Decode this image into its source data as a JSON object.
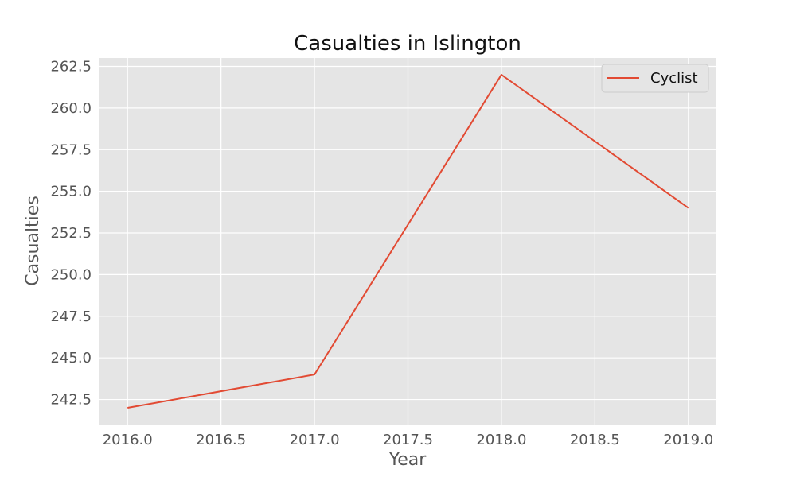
{
  "chart_data": {
    "type": "line",
    "title": "Casualties in Islington",
    "xlabel": "Year",
    "ylabel": "Casualties",
    "xlim": [
      2015.85,
      2019.15
    ],
    "ylim": [
      241.0,
      263.0
    ],
    "xticks": [
      2016.0,
      2016.5,
      2017.0,
      2017.5,
      2018.0,
      2018.5,
      2019.0
    ],
    "xtick_labels": [
      "2016.0",
      "2016.5",
      "2017.0",
      "2017.5",
      "2018.0",
      "2018.5",
      "2019.0"
    ],
    "yticks": [
      242.5,
      245.0,
      247.5,
      250.0,
      252.5,
      255.0,
      257.5,
      260.0,
      262.5
    ],
    "ytick_labels": [
      "242.5",
      "245.0",
      "247.5",
      "250.0",
      "252.5",
      "255.0",
      "257.5",
      "260.0",
      "262.5"
    ],
    "grid": true,
    "legend_position": "top-right",
    "series": [
      {
        "name": "Cyclist",
        "color": "#e24a33",
        "x": [
          2016,
          2017,
          2018,
          2019
        ],
        "y": [
          242,
          244,
          262,
          254
        ]
      }
    ]
  },
  "colors": {
    "plot_background": "#e5e5e5",
    "grid": "#ffffff",
    "tick_text": "#555555"
  }
}
